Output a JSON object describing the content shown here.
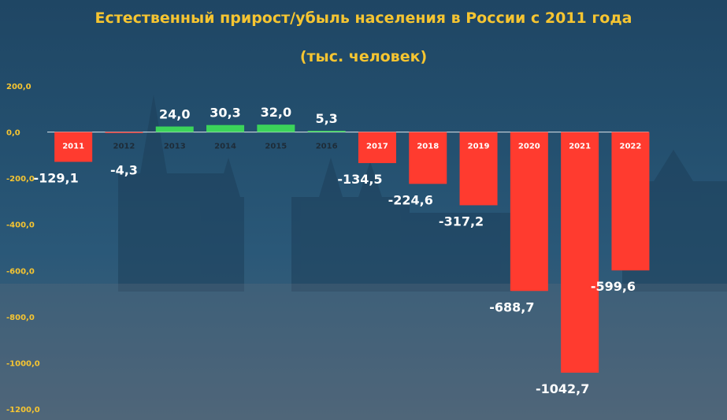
{
  "chart_data": {
    "type": "bar",
    "title": "Естественный прирост/убыль населения в России с 2011 года",
    "subtitle": "(тыс. человек)",
    "categories": [
      "2011",
      "2012",
      "2013",
      "2014",
      "2015",
      "2016",
      "2017",
      "2018",
      "2019",
      "2020",
      "2021",
      "2022"
    ],
    "values": [
      -129.1,
      -4.3,
      24.0,
      30.3,
      32.0,
      5.3,
      -134.5,
      -224.6,
      -317.2,
      -688.7,
      -1042.7,
      -599.6
    ],
    "value_labels": [
      "-129,1",
      "-4,3",
      "24,0",
      "30,3",
      "32,0",
      "5,3",
      "-134,5",
      "-224,6",
      "-317,2",
      "-688,7",
      "-1042,7",
      "-599,6"
    ],
    "ylim": [
      -1200,
      200
    ],
    "yticks": [
      200,
      0,
      -200,
      -400,
      -600,
      -800,
      -1000,
      -1200
    ],
    "ytick_labels": [
      "200,0",
      "0,0",
      "-200,0",
      "-400,0",
      "-600,0",
      "-800,0",
      "-1000,0",
      "-1200,0"
    ],
    "colors": {
      "positive": "#3bd45a",
      "negative": "#ff3b2f",
      "title": "#f6c531",
      "axis": "#ffffff"
    },
    "grid": false,
    "legend": "none"
  }
}
